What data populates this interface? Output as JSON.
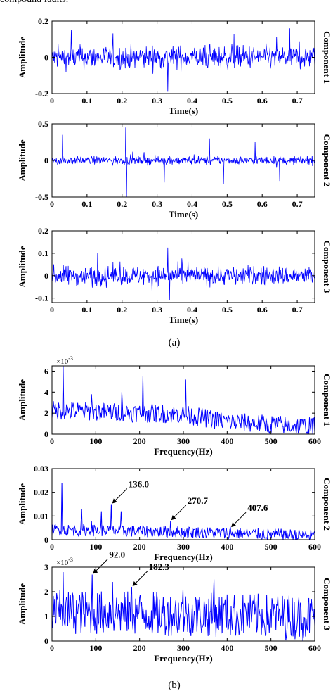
{
  "header_fragment": "compound faults.",
  "series_color": "#0000ff",
  "part_labels": [
    "(a)",
    "(b)"
  ],
  "chart_data": [
    {
      "type": "line",
      "group": "(a)",
      "domain": "time",
      "ylabel": "Amplitude",
      "xlabel": "Time(s)",
      "side_label": "Component 1",
      "xlim": [
        0,
        0.75
      ],
      "ylim": [
        -0.2,
        0.2
      ],
      "x_ticks": [
        "0",
        "0.1",
        "0.2",
        "0.3",
        "0.4",
        "0.5",
        "0.6",
        "0.7"
      ],
      "x_tick_values": [
        0,
        0.1,
        0.2,
        0.3,
        0.4,
        0.5,
        0.6,
        0.7
      ],
      "y_ticks": [
        "-0.2",
        "0",
        "0.2"
      ],
      "y_tick_values": [
        -0.2,
        0,
        0.2
      ],
      "multiplier": "",
      "signal": {
        "samples": 600,
        "rms": 0.045,
        "max_abs": 0.2,
        "spikes": [
          [
            0.055,
            0.15
          ],
          [
            0.33,
            -0.19
          ],
          [
            0.52,
            0.13
          ]
        ]
      },
      "annotations": []
    },
    {
      "type": "line",
      "group": "(a)",
      "domain": "time",
      "ylabel": "Amplitude",
      "xlabel": "Time(s)",
      "side_label": "Component 2",
      "xlim": [
        0,
        0.75
      ],
      "ylim": [
        -0.5,
        0.5
      ],
      "x_ticks": [
        "0",
        "0.1",
        "0.2",
        "0.3",
        "0.4",
        "0.5",
        "0.6",
        "0.7"
      ],
      "x_tick_values": [
        0,
        0.1,
        0.2,
        0.3,
        0.4,
        0.5,
        0.6,
        0.7
      ],
      "y_ticks": [
        "-0.5",
        "0",
        "0.5"
      ],
      "y_tick_values": [
        -0.5,
        0,
        0.5
      ],
      "multiplier": "",
      "signal": {
        "samples": 600,
        "rms": 0.04,
        "max_abs": 0.5,
        "spikes": [
          [
            0.03,
            0.35
          ],
          [
            0.21,
            0.45
          ],
          [
            0.213,
            -0.5
          ],
          [
            0.32,
            -0.3
          ],
          [
            0.45,
            0.3
          ],
          [
            0.49,
            -0.32
          ],
          [
            0.58,
            0.25
          ],
          [
            0.65,
            -0.28
          ]
        ]
      },
      "annotations": []
    },
    {
      "type": "line",
      "group": "(a)",
      "domain": "time",
      "ylabel": "Amplitude",
      "xlabel": "Time(s)",
      "side_label": "Component 3",
      "xlim": [
        0,
        0.75
      ],
      "ylim": [
        -0.12,
        0.2
      ],
      "x_ticks": [
        "0",
        "0.1",
        "0.2",
        "0.3",
        "0.4",
        "0.5",
        "0.6",
        "0.7"
      ],
      "x_tick_values": [
        0,
        0.1,
        0.2,
        0.3,
        0.4,
        0.5,
        0.6,
        0.7
      ],
      "y_ticks": [
        "-0.1",
        "0",
        "0.1",
        "0.2"
      ],
      "y_tick_values": [
        -0.1,
        0,
        0.1,
        0.2
      ],
      "multiplier": "",
      "signal": {
        "samples": 600,
        "rms": 0.03,
        "max_abs": 0.12,
        "spikes": [
          [
            0.33,
            0.125
          ],
          [
            0.335,
            -0.11
          ],
          [
            0.13,
            0.1
          ]
        ]
      },
      "annotations": []
    },
    {
      "type": "line",
      "group": "(b)",
      "domain": "frequency",
      "ylabel": "Amplitude",
      "xlabel": "Frequency(Hz)",
      "side_label": "Component 1",
      "xlim": [
        0,
        600
      ],
      "ylim": [
        0,
        6.5
      ],
      "x_ticks": [
        "0",
        "100",
        "200",
        "300",
        "400",
        "500",
        "600"
      ],
      "x_tick_values": [
        0,
        100,
        200,
        300,
        400,
        500,
        600
      ],
      "y_ticks": [
        "0",
        "2",
        "4",
        "6"
      ],
      "y_tick_values": [
        0,
        2,
        4,
        6
      ],
      "multiplier": "×10",
      "multiplier_exp": "-3",
      "spectrum": {
        "samples": 400,
        "baseline": [
          [
            0,
            2.2
          ],
          [
            300,
            1.8
          ],
          [
            400,
            1.1
          ],
          [
            600,
            0.6
          ]
        ],
        "noise": 0.9,
        "peaks": [
          [
            25,
            6.5
          ],
          [
            207,
            5.5
          ],
          [
            305,
            5.2
          ],
          [
            160,
            4.0
          ],
          [
            90,
            3.8
          ]
        ]
      },
      "annotations": []
    },
    {
      "type": "line",
      "group": "(b)",
      "domain": "frequency",
      "ylabel": "Amplitude",
      "xlabel": "Frequency(Hz)",
      "side_label": "Component 2",
      "xlim": [
        0,
        600
      ],
      "ylim": [
        0,
        0.03
      ],
      "x_ticks": [
        "0",
        "100",
        "200",
        "300",
        "400",
        "500",
        "600"
      ],
      "x_tick_values": [
        0,
        100,
        200,
        300,
        400,
        500,
        600
      ],
      "y_ticks": [
        "0",
        "0.01",
        "0.02",
        "0.03"
      ],
      "y_tick_values": [
        0,
        0.01,
        0.02,
        0.03
      ],
      "multiplier": "",
      "multiplier_exp": "",
      "spectrum": {
        "samples": 400,
        "baseline": [
          [
            0,
            0.004
          ],
          [
            300,
            0.003
          ],
          [
            600,
            0.0015
          ]
        ],
        "noise": 0.0025,
        "peaks": [
          [
            22,
            0.024
          ],
          [
            136,
            0.015
          ],
          [
            68,
            0.013
          ],
          [
            113,
            0.012
          ],
          [
            158,
            0.012
          ],
          [
            270.7,
            0.008
          ],
          [
            407.6,
            0.005
          ],
          [
            90,
            0.008
          ]
        ]
      },
      "annotations": [
        {
          "text": "136.0",
          "x": 136.0,
          "y": 0.015
        },
        {
          "text": "270.7",
          "x": 270.7,
          "y": 0.008
        },
        {
          "text": "407.6",
          "x": 407.6,
          "y": 0.005
        }
      ]
    },
    {
      "type": "line",
      "group": "(b)",
      "domain": "frequency",
      "ylabel": "Amplitude",
      "xlabel": "Frequency(Hz)",
      "side_label": "Component 3",
      "xlim": [
        0,
        600
      ],
      "ylim": [
        0,
        3
      ],
      "x_ticks": [
        "0",
        "100",
        "200",
        "300",
        "400",
        "500",
        "600"
      ],
      "x_tick_values": [
        0,
        100,
        200,
        300,
        400,
        500,
        600
      ],
      "y_ticks": [
        "0",
        "1",
        "2",
        "3"
      ],
      "y_tick_values": [
        0,
        1,
        2,
        3
      ],
      "multiplier": "×10",
      "multiplier_exp": "-3",
      "spectrum": {
        "samples": 400,
        "baseline": [
          [
            0,
            1.1
          ],
          [
            600,
            0.9
          ]
        ],
        "noise": 0.9,
        "peaks": [
          [
            25,
            2.8
          ],
          [
            92.0,
            2.7
          ],
          [
            138,
            2.4
          ],
          [
            182.3,
            2.2
          ],
          [
            300,
            2.1
          ],
          [
            370,
            2.5
          ]
        ]
      },
      "annotations": [
        {
          "text": "92.0",
          "x": 92.0,
          "y": 2.7
        },
        {
          "text": "182.3",
          "x": 182.3,
          "y": 2.2
        }
      ]
    }
  ]
}
